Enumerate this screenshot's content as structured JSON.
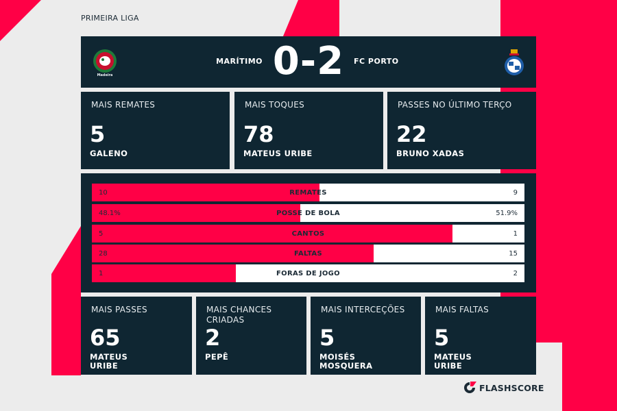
{
  "league": "PRIMEIRA LIGA",
  "match": {
    "home_team": "MARÍTIMO",
    "away_team": "FC PORTO",
    "score": "0-2",
    "home_crest_text": "Madeira"
  },
  "top_stats": [
    {
      "label": "MAIS REMATES",
      "value": "5",
      "player": "GALENO"
    },
    {
      "label": "MAIS TOQUES",
      "value": "78",
      "player": "MATEUS URIBE"
    },
    {
      "label": "PASSES NO ÚLTIMO TERÇO",
      "value": "22",
      "player": "BRUNO XADAS"
    }
  ],
  "comparison": [
    {
      "label": "REMATES",
      "home": "10",
      "away": "9",
      "home_share": 0.526
    },
    {
      "label": "POSSE DE BOLA",
      "home": "48.1%",
      "away": "51.9%",
      "home_share": 0.481
    },
    {
      "label": "CANTOS",
      "home": "5",
      "away": "1",
      "home_share": 0.833
    },
    {
      "label": "FALTAS",
      "home": "28",
      "away": "15",
      "home_share": 0.651
    },
    {
      "label": "FORAS DE JOGO",
      "home": "1",
      "away": "2",
      "home_share": 0.333
    }
  ],
  "bottom_stats": [
    {
      "label_lines": [
        "MAIS PASSES"
      ],
      "value": "65",
      "player_lines": [
        "MATEUS",
        "URIBE"
      ]
    },
    {
      "label_lines": [
        "MAIS CHANCES",
        "CRIADAS"
      ],
      "value": "2",
      "player_lines": [
        "PEPÊ"
      ]
    },
    {
      "label_lines": [
        "MAIS INTERCEÇÕES"
      ],
      "value": "5",
      "player_lines": [
        "MOISÉS",
        "MOSQUERA"
      ]
    },
    {
      "label_lines": [
        "MAIS FALTAS"
      ],
      "value": "5",
      "player_lines": [
        "MATEUS",
        "URIBE"
      ]
    }
  ],
  "brand": {
    "name": "FLASHSCORE",
    "icon": "flashscore-logo-icon"
  },
  "colors": {
    "panel": "#0f2632",
    "accent": "#ff0046",
    "background": "#ececec",
    "bar_away": "#ffffff"
  }
}
